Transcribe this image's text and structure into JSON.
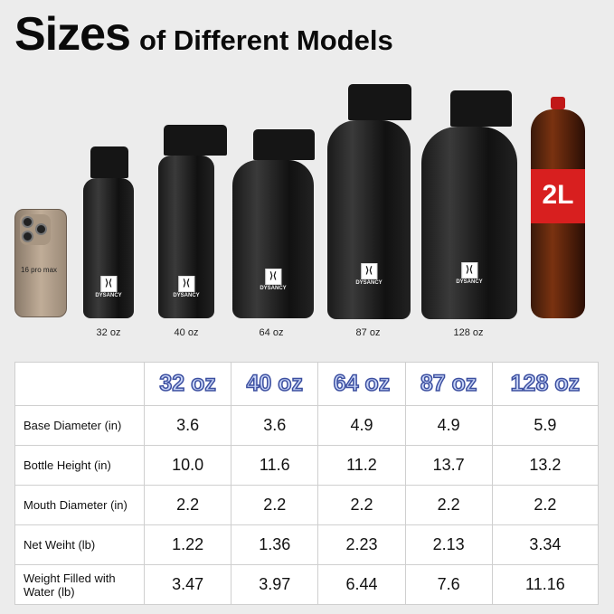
{
  "title": {
    "main": "Sizes",
    "sub": "of Different Models"
  },
  "phone": {
    "label": "16 pro max"
  },
  "bottles": [
    {
      "label": "32 oz",
      "brand": "DYSANCY"
    },
    {
      "label": "40 oz",
      "brand": "DYSANCY"
    },
    {
      "label": "64 oz",
      "brand": "DYSANCY"
    },
    {
      "label": "87 oz",
      "brand": "DYSANCY"
    },
    {
      "label": "128 oz",
      "brand": "DYSANCY"
    }
  ],
  "soda": {
    "label": "2L"
  },
  "table": {
    "headers": [
      "32 oz",
      "40 oz",
      "64 oz",
      "87 oz",
      "128 oz"
    ],
    "rows": [
      {
        "label": "Base Diameter (in)",
        "values": [
          "3.6",
          "3.6",
          "4.9",
          "4.9",
          "5.9"
        ]
      },
      {
        "label": "Bottle Height (in)",
        "values": [
          "10.0",
          "11.6",
          "11.2",
          "13.7",
          "13.2"
        ]
      },
      {
        "label": "Mouth Diameter (in)",
        "values": [
          "2.2",
          "2.2",
          "2.2",
          "2.2",
          "2.2"
        ]
      },
      {
        "label": "Net Weiht (lb)",
        "values": [
          "1.22",
          "1.36",
          "2.23",
          "2.13",
          "3.34"
        ]
      },
      {
        "label": "Weight Filled with Water (lb)",
        "values": [
          "3.47",
          "3.97",
          "6.44",
          "7.6",
          "11.16"
        ]
      }
    ]
  }
}
